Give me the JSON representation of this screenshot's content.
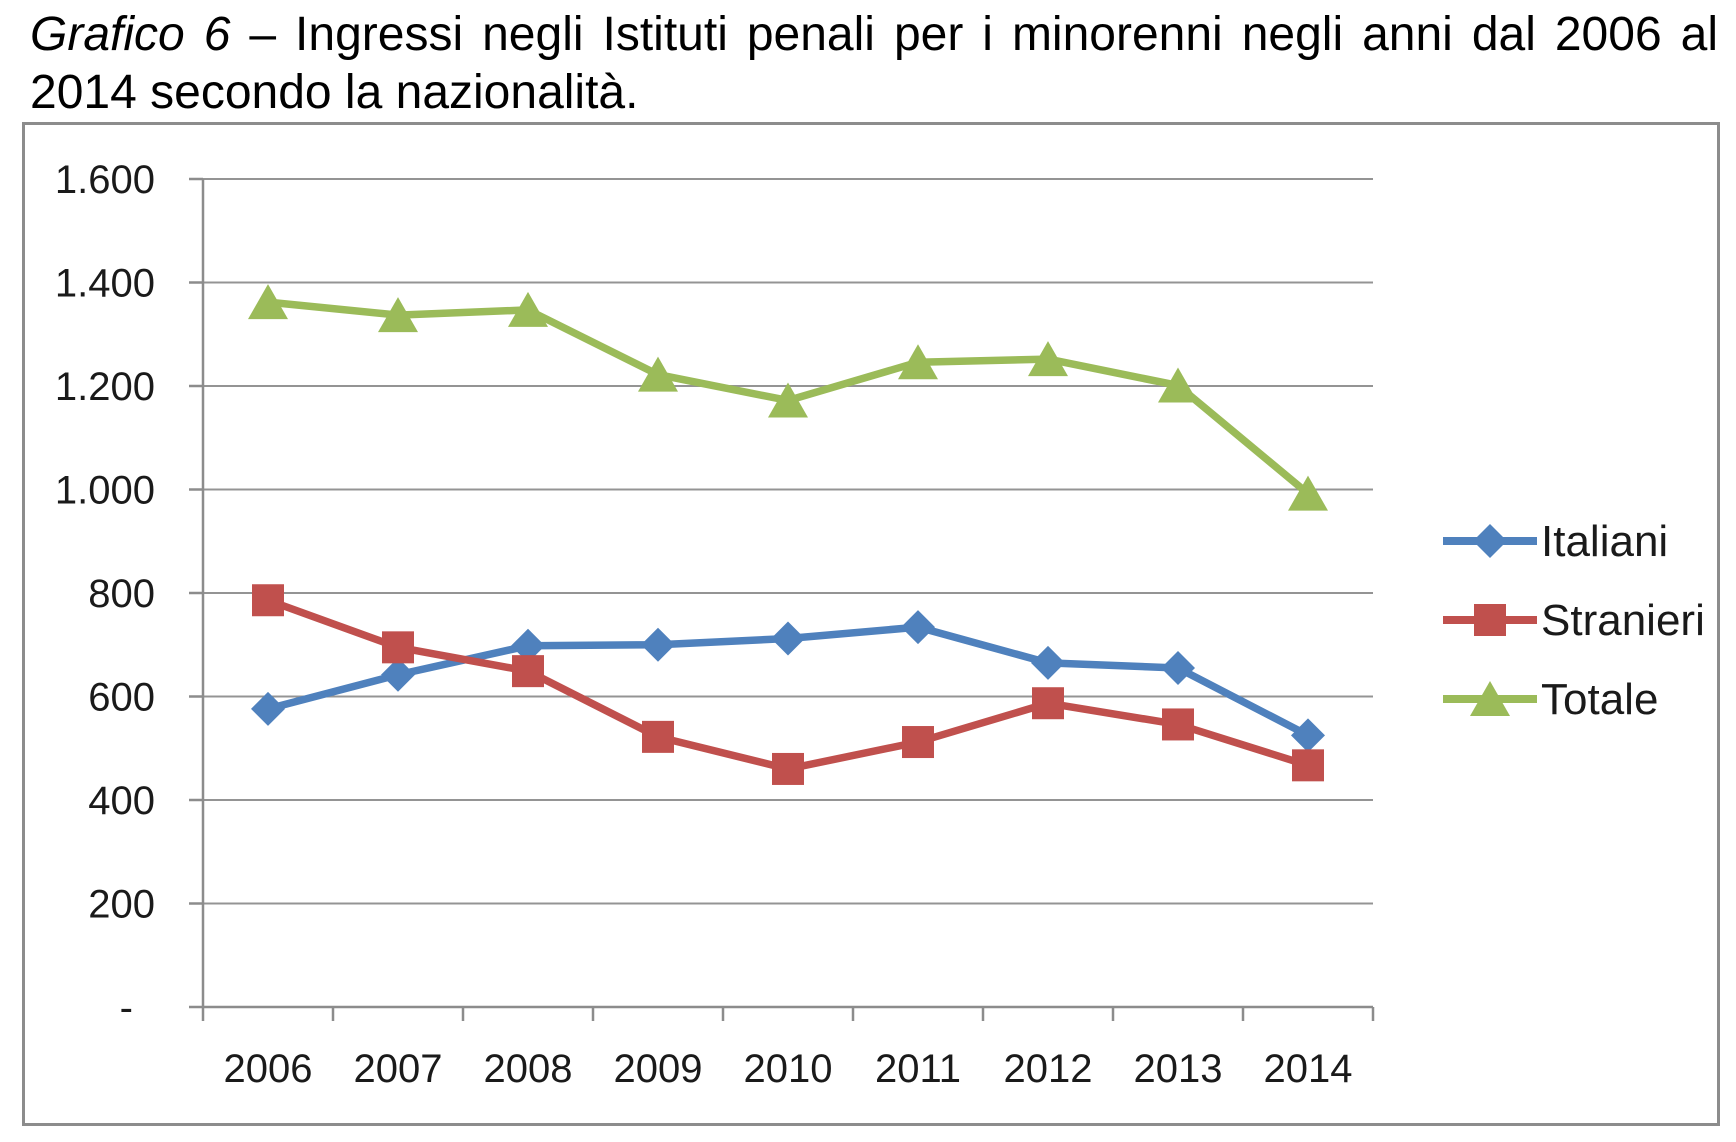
{
  "title": {
    "line1_italic": "Grafico 6",
    "line1_rest": " – Ingressi negli Istituti penali per i minorenni negli anni dal 2006 al",
    "line2": "2014 secondo la nazionalità."
  },
  "chart_data": {
    "type": "line",
    "title": "Ingressi negli Istituti penali per i minorenni negli anni dal 2006 al 2014 secondo la nazionalità",
    "categories": [
      "2006",
      "2007",
      "2008",
      "2009",
      "2010",
      "2011",
      "2012",
      "2013",
      "2014"
    ],
    "series": [
      {
        "name": "Italiani",
        "marker": "diamond",
        "color": "#4F81BD",
        "values": [
          576,
          642,
          698,
          700,
          712,
          734,
          665,
          655,
          525
        ]
      },
      {
        "name": "Stranieri",
        "marker": "square",
        "color": "#C0504D",
        "values": [
          786,
          695,
          649,
          522,
          460,
          512,
          587,
          546,
          467
        ]
      },
      {
        "name": "Totale",
        "marker": "triangle",
        "color": "#9BBB59",
        "values": [
          1362,
          1337,
          1347,
          1222,
          1172,
          1246,
          1252,
          1201,
          992
        ]
      }
    ],
    "xlabel": "",
    "ylabel": "",
    "ylim": [
      0,
      1600
    ],
    "ytick_step": 200,
    "ytick_labels": [
      "-",
      "200",
      "400",
      "600",
      "800",
      "1.000",
      "1.200",
      "1.400",
      "1.600"
    ],
    "grid": "horizontal",
    "legend_position": "right-middle",
    "colors": {
      "axis": "#8C8C8C",
      "gridline": "#949494",
      "text": "#1A1A1A",
      "frame_border": "#8C8C8C"
    }
  }
}
